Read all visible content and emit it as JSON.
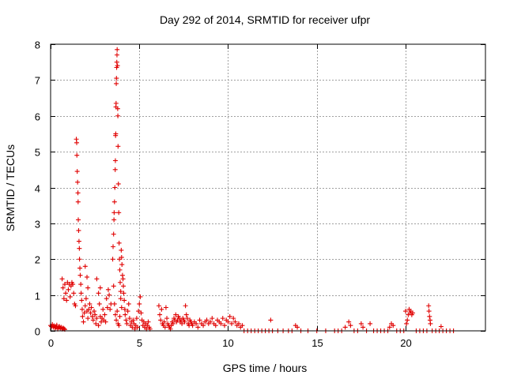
{
  "chart_data": {
    "type": "scatter",
    "title": "Day 292 of 2014, SRMTID for receiver ufpr",
    "xlabel": "GPS time / hours",
    "ylabel": "SRMTID / TECUs",
    "xlim": [
      0,
      24.5
    ],
    "ylim": [
      0,
      8
    ],
    "xticks": [
      0,
      5,
      10,
      15,
      20
    ],
    "yticks": [
      0,
      1,
      2,
      3,
      4,
      5,
      6,
      7,
      8
    ],
    "grid": true,
    "marker": "plus",
    "series": [
      {
        "name": "SRMTID",
        "color": "#e00000",
        "points": [
          [
            0.0,
            0.15
          ],
          [
            0.05,
            0.12
          ],
          [
            0.1,
            0.18
          ],
          [
            0.15,
            0.1
          ],
          [
            0.2,
            0.14
          ],
          [
            0.25,
            0.08
          ],
          [
            0.3,
            0.12
          ],
          [
            0.35,
            0.16
          ],
          [
            0.4,
            0.05
          ],
          [
            0.45,
            0.1
          ],
          [
            0.5,
            0.12
          ],
          [
            0.55,
            0.08
          ],
          [
            0.6,
            0.1
          ],
          [
            0.65,
            0.05
          ],
          [
            0.7,
            0.08
          ],
          [
            0.75,
            0.06
          ],
          [
            0.8,
            0.04
          ],
          [
            0.65,
            1.45
          ],
          [
            0.7,
            1.2
          ],
          [
            0.75,
            0.9
          ],
          [
            0.8,
            1.3
          ],
          [
            0.85,
            1.05
          ],
          [
            0.9,
            0.85
          ],
          [
            0.95,
            1.35
          ],
          [
            1.0,
            1.15
          ],
          [
            1.05,
            1.3
          ],
          [
            1.1,
            0.95
          ],
          [
            1.15,
            1.25
          ],
          [
            1.2,
            1.35
          ],
          [
            1.25,
            1.3
          ],
          [
            1.3,
            1.05
          ],
          [
            1.35,
            0.75
          ],
          [
            1.4,
            0.7
          ],
          [
            1.45,
            5.35
          ],
          [
            1.47,
            5.25
          ],
          [
            1.48,
            4.9
          ],
          [
            1.5,
            4.45
          ],
          [
            1.52,
            4.15
          ],
          [
            1.54,
            3.85
          ],
          [
            1.55,
            3.6
          ],
          [
            1.56,
            3.1
          ],
          [
            1.58,
            2.8
          ],
          [
            1.6,
            2.5
          ],
          [
            1.62,
            2.3
          ],
          [
            1.63,
            2.0
          ],
          [
            1.65,
            1.75
          ],
          [
            1.67,
            1.55
          ],
          [
            1.7,
            1.3
          ],
          [
            1.72,
            1.05
          ],
          [
            1.75,
            0.85
          ],
          [
            1.78,
            0.6
          ],
          [
            1.8,
            0.4
          ],
          [
            1.85,
            0.25
          ],
          [
            1.9,
            0.5
          ],
          [
            1.95,
            0.7
          ],
          [
            2.0,
            0.9
          ],
          [
            2.05,
            0.55
          ],
          [
            2.1,
            0.35
          ],
          [
            2.15,
            0.6
          ],
          [
            2.2,
            0.75
          ],
          [
            2.25,
            0.5
          ],
          [
            2.3,
            0.65
          ],
          [
            2.35,
            0.4
          ],
          [
            2.4,
            0.3
          ],
          [
            2.45,
            0.55
          ],
          [
            2.5,
            0.45
          ],
          [
            2.55,
            0.2
          ],
          [
            2.6,
            0.35
          ],
          [
            2.7,
            0.15
          ],
          [
            2.8,
            0.4
          ],
          [
            2.85,
            0.25
          ],
          [
            2.9,
            0.35
          ],
          [
            2.95,
            0.6
          ],
          [
            3.0,
            0.3
          ],
          [
            3.05,
            0.45
          ],
          [
            3.1,
            0.25
          ],
          [
            1.95,
            1.8
          ],
          [
            2.05,
            1.5
          ],
          [
            2.1,
            1.2
          ],
          [
            2.6,
            1.45
          ],
          [
            2.7,
            1.05
          ],
          [
            2.75,
            0.75
          ],
          [
            2.8,
            1.2
          ],
          [
            3.15,
            0.9
          ],
          [
            3.2,
            0.65
          ],
          [
            3.25,
            1.15
          ],
          [
            3.3,
            1.0
          ],
          [
            3.35,
            0.6
          ],
          [
            3.4,
            0.75
          ],
          [
            3.5,
            2.0
          ],
          [
            3.52,
            2.35
          ],
          [
            3.55,
            2.7
          ],
          [
            3.57,
            3.1
          ],
          [
            3.58,
            3.3
          ],
          [
            3.6,
            3.6
          ],
          [
            3.62,
            4.0
          ],
          [
            3.64,
            4.5
          ],
          [
            3.65,
            4.75
          ],
          [
            3.66,
            5.45
          ],
          [
            3.67,
            5.5
          ],
          [
            3.68,
            6.25
          ],
          [
            3.69,
            6.35
          ],
          [
            3.7,
            6.9
          ],
          [
            3.71,
            7.05
          ],
          [
            3.72,
            7.35
          ],
          [
            3.73,
            7.5
          ],
          [
            3.74,
            7.7
          ],
          [
            3.75,
            7.85
          ],
          [
            3.77,
            7.4
          ],
          [
            3.78,
            6.2
          ],
          [
            3.79,
            6.0
          ],
          [
            3.8,
            5.15
          ],
          [
            3.82,
            4.1
          ],
          [
            3.84,
            3.3
          ],
          [
            3.86,
            2.45
          ],
          [
            3.88,
            2.0
          ],
          [
            3.9,
            1.7
          ],
          [
            3.92,
            1.35
          ],
          [
            3.95,
            1.1
          ],
          [
            3.55,
            1.25
          ],
          [
            3.6,
            0.75
          ],
          [
            3.65,
            0.45
          ],
          [
            3.7,
            0.3
          ],
          [
            3.75,
            0.55
          ],
          [
            3.8,
            0.2
          ],
          [
            3.85,
            0.15
          ],
          [
            3.9,
            0.4
          ],
          [
            3.95,
            0.9
          ],
          [
            4.0,
            0.65
          ],
          [
            3.98,
            2.25
          ],
          [
            4.0,
            2.05
          ],
          [
            4.02,
            1.85
          ],
          [
            4.05,
            1.55
          ],
          [
            4.08,
            1.45
          ],
          [
            4.1,
            1.25
          ],
          [
            4.12,
            1.05
          ],
          [
            4.15,
            0.85
          ],
          [
            4.18,
            0.6
          ],
          [
            4.2,
            0.45
          ],
          [
            4.25,
            0.3
          ],
          [
            4.3,
            0.2
          ],
          [
            4.35,
            0.55
          ],
          [
            4.4,
            0.75
          ],
          [
            4.45,
            0.35
          ],
          [
            4.5,
            0.15
          ],
          [
            4.55,
            0.25
          ],
          [
            4.6,
            0.1
          ],
          [
            4.65,
            0.3
          ],
          [
            4.7,
            0.2
          ],
          [
            4.75,
            0.05
          ],
          [
            4.8,
            0.15
          ],
          [
            4.85,
            0.35
          ],
          [
            4.9,
            0.1
          ],
          [
            4.95,
            0.55
          ],
          [
            5.0,
            0.75
          ],
          [
            5.05,
            0.95
          ],
          [
            5.1,
            0.5
          ],
          [
            5.15,
            0.3
          ],
          [
            5.2,
            0.15
          ],
          [
            5.25,
            0.25
          ],
          [
            5.3,
            0.1
          ],
          [
            5.35,
            0.2
          ],
          [
            5.4,
            0.05
          ],
          [
            5.45,
            0.15
          ],
          [
            5.5,
            0.25
          ],
          [
            5.55,
            0.1
          ],
          [
            5.6,
            0.05
          ],
          [
            6.1,
            0.7
          ],
          [
            6.15,
            0.45
          ],
          [
            6.2,
            0.3
          ],
          [
            6.25,
            0.6
          ],
          [
            6.3,
            0.2
          ],
          [
            6.35,
            0.15
          ],
          [
            6.4,
            0.25
          ],
          [
            6.45,
            0.1
          ],
          [
            6.5,
            0.65
          ],
          [
            6.55,
            0.35
          ],
          [
            6.6,
            0.2
          ],
          [
            6.65,
            0.15
          ],
          [
            6.7,
            0.1
          ],
          [
            6.75,
            0.05
          ],
          [
            6.8,
            0.15
          ],
          [
            6.85,
            0.25
          ],
          [
            6.9,
            0.2
          ],
          [
            6.95,
            0.35
          ],
          [
            7.0,
            0.3
          ],
          [
            7.05,
            0.45
          ],
          [
            7.1,
            0.25
          ],
          [
            7.15,
            0.3
          ],
          [
            7.2,
            0.4
          ],
          [
            7.25,
            0.35
          ],
          [
            7.3,
            0.25
          ],
          [
            7.35,
            0.3
          ],
          [
            7.4,
            0.2
          ],
          [
            7.45,
            0.35
          ],
          [
            7.5,
            0.3
          ],
          [
            7.55,
            0.25
          ],
          [
            7.6,
            0.7
          ],
          [
            7.65,
            0.45
          ],
          [
            7.7,
            0.35
          ],
          [
            7.75,
            0.2
          ],
          [
            7.8,
            0.15
          ],
          [
            7.85,
            0.3
          ],
          [
            7.9,
            0.25
          ],
          [
            7.95,
            0.2
          ],
          [
            8.0,
            0.15
          ],
          [
            8.1,
            0.25
          ],
          [
            8.2,
            0.2
          ],
          [
            8.3,
            0.1
          ],
          [
            8.4,
            0.3
          ],
          [
            8.5,
            0.2
          ],
          [
            8.6,
            0.15
          ],
          [
            8.7,
            0.25
          ],
          [
            8.8,
            0.3
          ],
          [
            8.9,
            0.2
          ],
          [
            9.0,
            0.25
          ],
          [
            9.1,
            0.35
          ],
          [
            9.2,
            0.2
          ],
          [
            9.3,
            0.15
          ],
          [
            9.4,
            0.3
          ],
          [
            9.5,
            0.25
          ],
          [
            9.6,
            0.2
          ],
          [
            9.7,
            0.35
          ],
          [
            9.8,
            0.15
          ],
          [
            9.9,
            0.3
          ],
          [
            10.0,
            0.25
          ],
          [
            10.1,
            0.4
          ],
          [
            10.2,
            0.2
          ],
          [
            10.3,
            0.35
          ],
          [
            10.4,
            0.25
          ],
          [
            10.5,
            0.15
          ],
          [
            10.6,
            0.2
          ],
          [
            10.7,
            0.1
          ],
          [
            10.8,
            0.15
          ],
          [
            10.9,
            0.0
          ],
          [
            11.1,
            0.0
          ],
          [
            11.3,
            0.0
          ],
          [
            11.5,
            0.0
          ],
          [
            11.7,
            0.0
          ],
          [
            11.9,
            0.0
          ],
          [
            12.1,
            0.0
          ],
          [
            12.3,
            0.0
          ],
          [
            12.4,
            0.3
          ],
          [
            12.5,
            0.0
          ],
          [
            12.8,
            0.0
          ],
          [
            13.1,
            0.0
          ],
          [
            13.4,
            0.0
          ],
          [
            13.6,
            0.0
          ],
          [
            13.8,
            0.15
          ],
          [
            13.9,
            0.1
          ],
          [
            14.1,
            0.0
          ],
          [
            14.5,
            0.0
          ],
          [
            15.0,
            0.0
          ],
          [
            15.5,
            0.0
          ],
          [
            16.0,
            0.0
          ],
          [
            16.2,
            0.0
          ],
          [
            16.4,
            0.0
          ],
          [
            16.6,
            0.1
          ],
          [
            16.8,
            0.25
          ],
          [
            16.9,
            0.15
          ],
          [
            17.1,
            0.0
          ],
          [
            17.3,
            0.0
          ],
          [
            17.5,
            0.2
          ],
          [
            17.6,
            0.1
          ],
          [
            17.8,
            0.0
          ],
          [
            18.0,
            0.2
          ],
          [
            18.2,
            0.0
          ],
          [
            18.4,
            0.0
          ],
          [
            18.6,
            0.0
          ],
          [
            18.8,
            0.0
          ],
          [
            19.0,
            0.0
          ],
          [
            19.1,
            0.1
          ],
          [
            19.2,
            0.2
          ],
          [
            19.3,
            0.15
          ],
          [
            19.5,
            0.0
          ],
          [
            19.7,
            0.0
          ],
          [
            19.9,
            0.0
          ],
          [
            20.0,
            0.55
          ],
          [
            20.05,
            0.2
          ],
          [
            20.1,
            0.3
          ],
          [
            20.15,
            0.45
          ],
          [
            20.2,
            0.6
          ],
          [
            20.25,
            0.5
          ],
          [
            20.3,
            0.55
          ],
          [
            20.35,
            0.45
          ],
          [
            20.4,
            0.5
          ],
          [
            20.6,
            0.0
          ],
          [
            20.8,
            0.0
          ],
          [
            21.0,
            0.0
          ],
          [
            21.2,
            0.0
          ],
          [
            21.3,
            0.7
          ],
          [
            21.32,
            0.55
          ],
          [
            21.35,
            0.4
          ],
          [
            21.38,
            0.3
          ],
          [
            21.4,
            0.2
          ],
          [
            21.5,
            0.0
          ],
          [
            21.7,
            0.0
          ],
          [
            21.9,
            0.0
          ],
          [
            22.0,
            0.12
          ],
          [
            22.1,
            0.0
          ],
          [
            22.3,
            0.0
          ],
          [
            22.5,
            0.0
          ],
          [
            22.7,
            0.0
          ]
        ]
      }
    ]
  }
}
